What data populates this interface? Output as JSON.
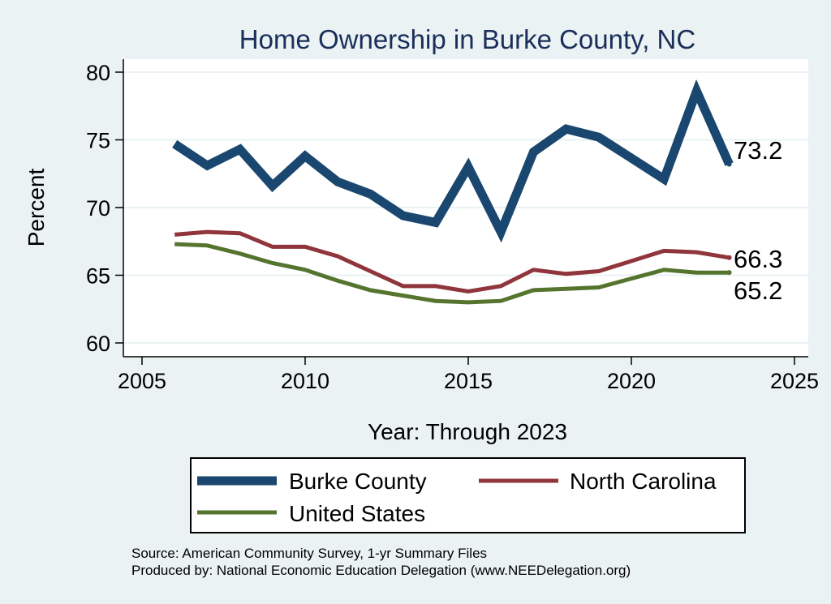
{
  "chart_data": {
    "type": "line",
    "title": "Home Ownership in Burke County, NC",
    "xlabel": "Year: Through 2023",
    "ylabel": "Percent",
    "xlim": [
      2005,
      2025
    ],
    "ylim": [
      60,
      80
    ],
    "xticks": [
      "2005",
      "2010",
      "2015",
      "2020",
      "2025"
    ],
    "yticks": [
      "60",
      "65",
      "70",
      "75",
      "80"
    ],
    "grid": true,
    "legend_position": "bottom",
    "series": [
      {
        "name": "Burke County",
        "color": "#1a476f",
        "x": [
          2006,
          2007,
          2008,
          2009,
          2010,
          2011,
          2012,
          2013,
          2014,
          2015,
          2016,
          2017,
          2018,
          2019,
          2021,
          2022,
          2023
        ],
        "values": [
          74.7,
          73.1,
          74.3,
          71.6,
          73.8,
          71.9,
          71.0,
          69.4,
          68.9,
          73.0,
          68.2,
          74.1,
          75.8,
          75.2,
          72.1,
          78.6,
          73.2
        ],
        "end_label": "73.2"
      },
      {
        "name": "North Carolina",
        "color": "#90353b",
        "x": [
          2006,
          2007,
          2008,
          2009,
          2010,
          2011,
          2012,
          2013,
          2014,
          2015,
          2016,
          2017,
          2018,
          2019,
          2021,
          2022,
          2023
        ],
        "values": [
          68.0,
          68.2,
          68.1,
          67.1,
          67.1,
          66.4,
          65.3,
          64.2,
          64.2,
          63.8,
          64.2,
          65.4,
          65.1,
          65.3,
          66.8,
          66.7,
          66.3
        ],
        "end_label": "66.3"
      },
      {
        "name": "United States",
        "color": "#55752f",
        "x": [
          2006,
          2007,
          2008,
          2009,
          2010,
          2011,
          2012,
          2013,
          2014,
          2015,
          2016,
          2017,
          2018,
          2019,
          2021,
          2022,
          2023
        ],
        "values": [
          67.3,
          67.2,
          66.6,
          65.9,
          65.4,
          64.6,
          63.9,
          63.5,
          63.1,
          63.0,
          63.1,
          63.9,
          64.0,
          64.1,
          65.4,
          65.2,
          65.2
        ],
        "end_label": "65.2"
      }
    ]
  },
  "notes": {
    "source": "Source: American Community Survey, 1-yr Summary Files",
    "produced_by": "Produced by: National Economic Education Delegation (www.NEEDelegation.org)"
  }
}
